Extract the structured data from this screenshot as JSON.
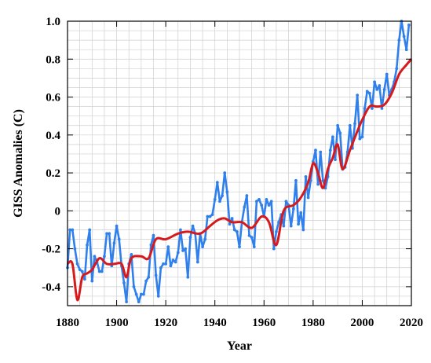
{
  "chart_data": {
    "type": "line",
    "xlabel": "Year",
    "ylabel": "GISS Anomalies (C)",
    "xlim": [
      1880,
      2020
    ],
    "ylim": [
      -0.5,
      1.0
    ],
    "xticks": [
      1880,
      1900,
      1920,
      1940,
      1960,
      1980,
      2000,
      2020
    ],
    "yticks": [
      -0.4,
      -0.2,
      0,
      0.2,
      0.4,
      0.6,
      0.8,
      1.0
    ],
    "xtick_labels": [
      "1880",
      "1900",
      "1920",
      "1940",
      "1960",
      "1980",
      "2000",
      "2020"
    ],
    "ytick_labels": [
      "-0.4",
      "-0.2",
      "0",
      "0.2",
      "0.4",
      "0.6",
      "0.8",
      "1.0"
    ],
    "grid": true,
    "series": [
      {
        "color": "#2f80ed",
        "marker": "dot",
        "x": [
          1880,
          1881,
          1882,
          1883,
          1884,
          1885,
          1886,
          1887,
          1888,
          1889,
          1890,
          1891,
          1892,
          1893,
          1894,
          1895,
          1896,
          1897,
          1898,
          1899,
          1900,
          1901,
          1902,
          1903,
          1904,
          1905,
          1906,
          1907,
          1908,
          1909,
          1910,
          1911,
          1912,
          1913,
          1914,
          1915,
          1916,
          1917,
          1918,
          1919,
          1920,
          1921,
          1922,
          1923,
          1924,
          1925,
          1926,
          1927,
          1928,
          1929,
          1930,
          1931,
          1932,
          1933,
          1934,
          1935,
          1936,
          1937,
          1938,
          1939,
          1940,
          1941,
          1942,
          1943,
          1944,
          1945,
          1946,
          1947,
          1948,
          1949,
          1950,
          1951,
          1952,
          1953,
          1954,
          1955,
          1956,
          1957,
          1958,
          1959,
          1960,
          1961,
          1962,
          1963,
          1964,
          1965,
          1966,
          1967,
          1968,
          1969,
          1970,
          1971,
          1972,
          1973,
          1974,
          1975,
          1976,
          1977,
          1978,
          1979,
          1980,
          1981,
          1982,
          1983,
          1984,
          1985,
          1986,
          1987,
          1988,
          1989,
          1990,
          1991,
          1992,
          1993,
          1994,
          1995,
          1996,
          1997,
          1998,
          1999,
          2000,
          2001,
          2002,
          2003,
          2004,
          2005,
          2006,
          2007,
          2008,
          2009,
          2010,
          2011,
          2012,
          2013,
          2014,
          2015,
          2016,
          2017,
          2018,
          2019
        ],
        "y": [
          -0.3,
          -0.1,
          -0.1,
          -0.2,
          -0.28,
          -0.31,
          -0.32,
          -0.36,
          -0.18,
          -0.1,
          -0.37,
          -0.24,
          -0.27,
          -0.32,
          -0.32,
          -0.24,
          -0.12,
          -0.12,
          -0.29,
          -0.17,
          -0.08,
          -0.15,
          -0.29,
          -0.38,
          -0.48,
          -0.28,
          -0.23,
          -0.4,
          -0.44,
          -0.48,
          -0.44,
          -0.44,
          -0.37,
          -0.35,
          -0.18,
          -0.13,
          -0.34,
          -0.45,
          -0.3,
          -0.28,
          -0.28,
          -0.19,
          -0.29,
          -0.26,
          -0.27,
          -0.22,
          -0.1,
          -0.21,
          -0.2,
          -0.35,
          -0.14,
          -0.08,
          -0.12,
          -0.27,
          -0.12,
          -0.19,
          -0.15,
          -0.03,
          -0.03,
          -0.02,
          0.06,
          0.15,
          0.05,
          0.08,
          0.2,
          0.1,
          -0.07,
          -0.04,
          -0.1,
          -0.11,
          -0.19,
          -0.06,
          0.02,
          0.08,
          -0.13,
          -0.14,
          -0.19,
          0.05,
          0.06,
          0.03,
          -0.03,
          0.06,
          0.03,
          0.05,
          -0.2,
          -0.11,
          -0.06,
          -0.02,
          -0.08,
          0.05,
          0.03,
          -0.08,
          0.01,
          0.16,
          -0.07,
          -0.01,
          -0.1,
          0.18,
          0.07,
          0.16,
          0.26,
          0.32,
          0.14,
          0.31,
          0.16,
          0.12,
          0.18,
          0.32,
          0.39,
          0.27,
          0.45,
          0.41,
          0.22,
          0.23,
          0.31,
          0.45,
          0.33,
          0.46,
          0.61,
          0.38,
          0.39,
          0.54,
          0.63,
          0.62,
          0.54,
          0.68,
          0.64,
          0.66,
          0.54,
          0.64,
          0.72,
          0.61,
          0.64,
          0.68,
          0.75,
          0.9,
          1.01,
          0.92,
          0.85,
          0.98
        ]
      },
      {
        "color": "#d7191c",
        "smooth": true,
        "x": [
          1880,
          1882,
          1884,
          1886,
          1888,
          1890,
          1893,
          1896,
          1899,
          1902,
          1904,
          1906,
          1910,
          1913,
          1916,
          1920,
          1925,
          1929,
          1934,
          1938,
          1941,
          1944,
          1947,
          1951,
          1955,
          1959,
          1962,
          1965,
          1968,
          1972,
          1975,
          1978,
          1980,
          1982,
          1984,
          1986,
          1988,
          1990,
          1992,
          1995,
          1998,
          2000,
          2003,
          2006,
          2009,
          2012,
          2015,
          2018,
          2020
        ],
        "y": [
          -0.28,
          -0.28,
          -0.47,
          -0.35,
          -0.33,
          -0.31,
          -0.25,
          -0.28,
          -0.28,
          -0.28,
          -0.35,
          -0.25,
          -0.24,
          -0.25,
          -0.15,
          -0.15,
          -0.12,
          -0.11,
          -0.12,
          -0.08,
          -0.05,
          -0.04,
          -0.06,
          -0.06,
          -0.09,
          -0.03,
          -0.06,
          -0.18,
          0.0,
          0.03,
          0.07,
          0.15,
          0.25,
          0.2,
          0.12,
          0.22,
          0.28,
          0.35,
          0.22,
          0.32,
          0.42,
          0.48,
          0.55,
          0.55,
          0.56,
          0.62,
          0.72,
          0.77,
          0.8
        ]
      }
    ]
  }
}
